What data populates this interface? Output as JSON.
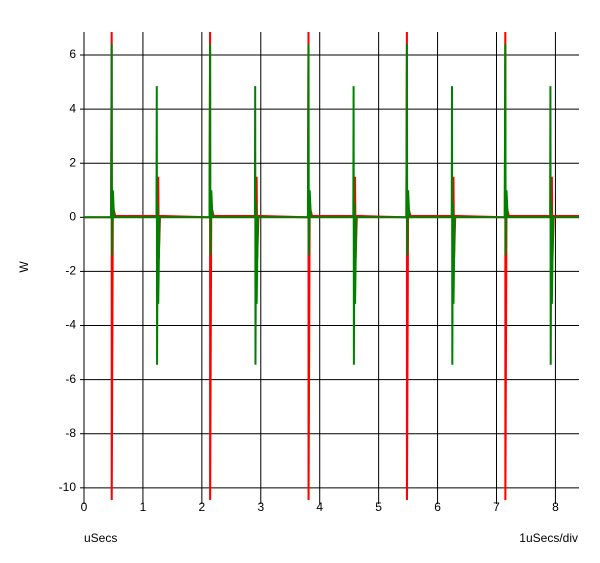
{
  "chart_data": {
    "type": "line",
    "y_label": "W",
    "x_label": "uSecs",
    "x_scale_label": "1uSecs/div",
    "xlim": [
      0,
      8.4
    ],
    "ylim": [
      -10.45,
      6.85
    ],
    "xticks": [
      0,
      1,
      2,
      3,
      4,
      5,
      6,
      7,
      8
    ],
    "yticks": [
      -10,
      -8,
      -6,
      -4,
      -2,
      0,
      2,
      4,
      6
    ],
    "grid": true,
    "series": [
      {
        "color": "#ff0000",
        "x": [
          0,
          0.46,
          0.47,
          0.47,
          0.49,
          0.53,
          1.25,
          1.26,
          1.27,
          1.29,
          2.13,
          2.14,
          2.14,
          2.16,
          2.2,
          2.92,
          2.93,
          2.94,
          2.96,
          3.8,
          3.81,
          3.81,
          3.83,
          3.87,
          4.59,
          4.6,
          4.61,
          4.63,
          5.47,
          5.48,
          5.48,
          5.5,
          5.54,
          6.26,
          6.27,
          6.28,
          6.3,
          7.14,
          7.15,
          7.15,
          7.17,
          7.21,
          7.93,
          7.94,
          7.95,
          7.97,
          8.4
        ],
        "values": [
          0,
          0,
          7.5,
          -11,
          0.4,
          0.05,
          0.05,
          1.5,
          -1.5,
          0.05,
          0,
          7.5,
          -11,
          0.4,
          0.05,
          0.05,
          1.5,
          -1.5,
          0.05,
          0,
          7.5,
          -11,
          0.4,
          0.05,
          0.05,
          1.5,
          -1.5,
          0.05,
          0,
          7.5,
          -11,
          0.4,
          0.05,
          0.05,
          1.5,
          -1.5,
          0.05,
          0,
          7.5,
          -11,
          0.4,
          0.05,
          0.05,
          1.5,
          -1.5,
          0.05,
          0.05
        ]
      },
      {
        "color": "#008000",
        "x": [
          0,
          0.46,
          0.47,
          0.475,
          0.49,
          0.51,
          1.23,
          1.235,
          1.24,
          1.25,
          1.26,
          1.28,
          2.13,
          2.14,
          2.145,
          2.16,
          2.18,
          2.9,
          2.905,
          2.91,
          2.92,
          2.93,
          2.95,
          3.8,
          3.81,
          3.815,
          3.83,
          3.85,
          4.57,
          4.575,
          4.58,
          4.59,
          4.6,
          4.62,
          5.47,
          5.48,
          5.485,
          5.5,
          5.52,
          6.24,
          6.245,
          6.25,
          6.26,
          6.27,
          6.29,
          7.14,
          7.15,
          7.155,
          7.17,
          7.19,
          7.91,
          7.915,
          7.92,
          7.93,
          7.94,
          7.96,
          8.4
        ],
        "values": [
          0,
          0,
          6.4,
          -1.4,
          1.0,
          0,
          0,
          4.85,
          -5.45,
          0.5,
          -3.2,
          0,
          0,
          6.4,
          -1.4,
          1.0,
          0,
          0,
          4.85,
          -5.45,
          0.5,
          -3.2,
          0,
          0,
          6.4,
          -1.4,
          1.0,
          0,
          0,
          4.85,
          -5.45,
          0.5,
          -3.2,
          0,
          0,
          6.4,
          -1.4,
          1.0,
          0,
          0,
          4.85,
          -5.45,
          0.5,
          -3.2,
          0,
          0,
          6.4,
          -1.4,
          1.0,
          0,
          0,
          4.85,
          -5.45,
          0.5,
          -3.2,
          0,
          0
        ]
      }
    ]
  }
}
